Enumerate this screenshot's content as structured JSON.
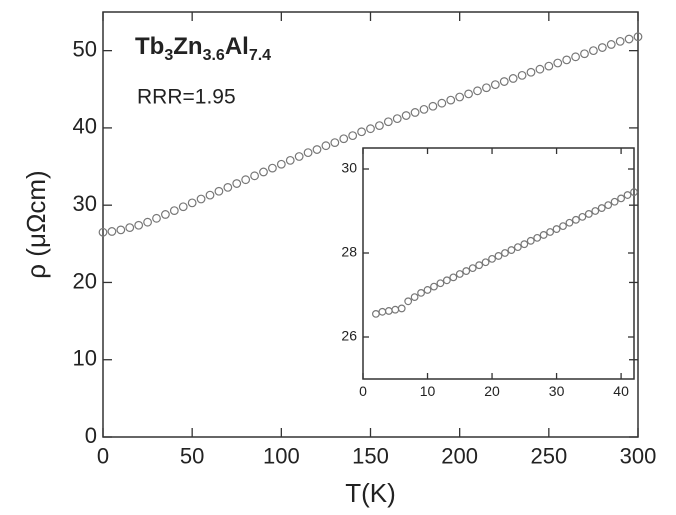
{
  "chart_data": [
    {
      "type": "scatter",
      "xlabel": "T(K)",
      "ylabel": "ρ (μΩcm)",
      "annotations": {
        "compound": [
          "Tb",
          "3",
          "Zn",
          "3.6",
          "Al",
          "7.4"
        ],
        "ratio": "RRR=1.95"
      },
      "xlim": [
        0,
        300
      ],
      "ylim": [
        0,
        55
      ],
      "xticks": [
        0,
        50,
        100,
        150,
        200,
        250,
        300
      ],
      "yticks": [
        0,
        10,
        20,
        30,
        40,
        50
      ],
      "series": [
        {
          "color": "#777777",
          "x": [
            0,
            5,
            10,
            15,
            20,
            25,
            30,
            35,
            40,
            45,
            50,
            55,
            60,
            65,
            70,
            75,
            80,
            85,
            90,
            95,
            100,
            105,
            110,
            115,
            120,
            125,
            130,
            135,
            140,
            145,
            150,
            155,
            160,
            165,
            170,
            175,
            180,
            185,
            190,
            195,
            200,
            205,
            210,
            215,
            220,
            225,
            230,
            235,
            240,
            245,
            250,
            255,
            260,
            265,
            270,
            275,
            280,
            285,
            290,
            295,
            300
          ],
          "values": [
            26.5,
            26.6,
            26.8,
            27.1,
            27.4,
            27.8,
            28.3,
            28.8,
            29.3,
            29.8,
            30.3,
            30.8,
            31.3,
            31.8,
            32.3,
            32.8,
            33.3,
            33.8,
            34.3,
            34.8,
            35.3,
            35.8,
            36.3,
            36.8,
            37.2,
            37.7,
            38.1,
            38.6,
            39.0,
            39.5,
            39.9,
            40.3,
            40.8,
            41.2,
            41.6,
            42.0,
            42.4,
            42.8,
            43.2,
            43.6,
            44.0,
            44.4,
            44.8,
            45.2,
            45.6,
            46.0,
            46.4,
            46.8,
            47.2,
            47.6,
            48.0,
            48.4,
            48.8,
            49.2,
            49.6,
            50.0,
            50.4,
            50.8,
            51.2,
            51.5,
            51.8
          ]
        }
      ]
    },
    {
      "type": "scatter",
      "xlim": [
        0,
        42
      ],
      "ylim": [
        25,
        30.5
      ],
      "xticks": [
        0,
        10,
        20,
        30,
        40
      ],
      "yticks": [
        26,
        28,
        30
      ],
      "series": [
        {
          "color": "#777777",
          "x": [
            2,
            3,
            4,
            5,
            6,
            7,
            8,
            9,
            10,
            11,
            12,
            13,
            14,
            15,
            16,
            17,
            18,
            19,
            20,
            21,
            22,
            23,
            24,
            25,
            26,
            27,
            28,
            29,
            30,
            31,
            32,
            33,
            34,
            35,
            36,
            37,
            38,
            39,
            40,
            41,
            42
          ],
          "values": [
            26.55,
            26.6,
            26.62,
            26.65,
            26.68,
            26.85,
            26.95,
            27.05,
            27.12,
            27.2,
            27.28,
            27.35,
            27.42,
            27.5,
            27.57,
            27.64,
            27.71,
            27.78,
            27.86,
            27.93,
            28.0,
            28.07,
            28.14,
            28.21,
            28.29,
            28.36,
            28.43,
            28.5,
            28.57,
            28.64,
            28.72,
            28.79,
            28.86,
            28.93,
            29.0,
            29.07,
            29.14,
            29.22,
            29.3,
            29.38,
            29.45
          ]
        }
      ]
    }
  ]
}
